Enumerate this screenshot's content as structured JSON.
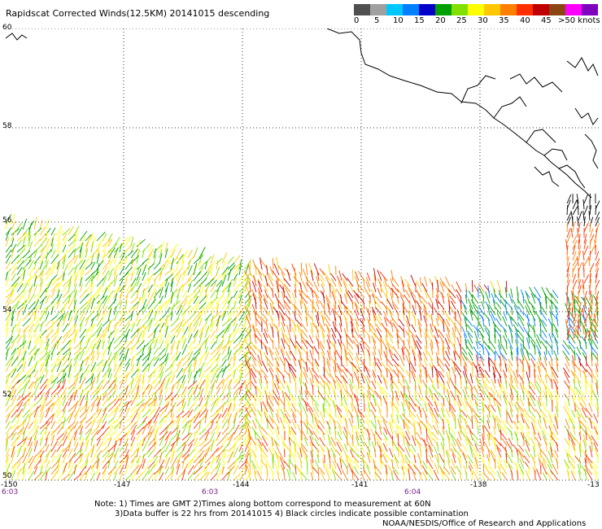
{
  "title": "Rapidscat Corrected Winds(12.5KM) 20141015 descending",
  "legend": {
    "labels": [
      "0",
      "5",
      "10",
      "15",
      "20",
      "25",
      "30",
      "35",
      "40",
      "45",
      ">50 knots"
    ],
    "colors": [
      "#505050",
      "#a0a0a0",
      "#00c8ff",
      "#0080ff",
      "#0000c8",
      "#00a000",
      "#80e000",
      "#ffff00",
      "#ffc800",
      "#ff8000",
      "#ff3000",
      "#c00000",
      "#8b4513",
      "#ff00ff",
      "#8000c0"
    ]
  },
  "latitude_labels": [
    "60",
    "58",
    "56",
    "54",
    "52",
    "50"
  ],
  "longitude_labels": [
    "-150",
    "-147",
    "-144",
    "-141",
    "-138",
    "-13"
  ],
  "time_labels": [
    "6:03",
    "6:03",
    "6:04"
  ],
  "notes": {
    "line1": "Note: 1) Times are GMT 2)Times along bottom correspond to measurement at 60N",
    "line2": "3)Data buffer is 22 hrs from 20141015 4) Black circles indicate possible contamination",
    "line3": "NOAA/NESDIS/Office of Research and Applications"
  }
}
